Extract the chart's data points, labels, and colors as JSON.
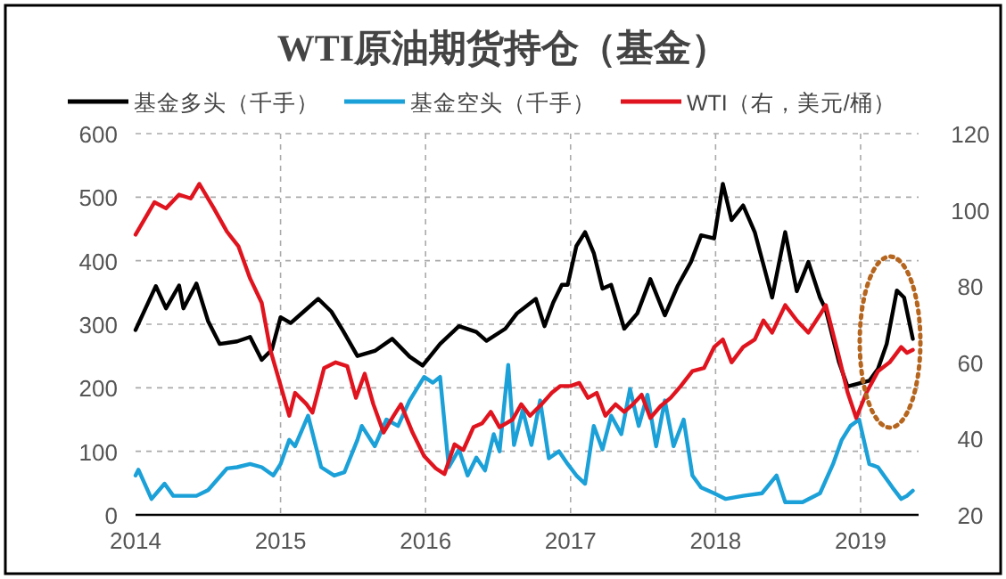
{
  "chart_data": {
    "type": "line",
    "title": "WTI原油期货持仓（基金）",
    "legend": "top",
    "grid": true,
    "line_style": "solid",
    "marker": "none",
    "xlim": [
      2014,
      2019.4
    ],
    "xticks": [
      2014,
      2015,
      2016,
      2017,
      2018,
      2019
    ],
    "ylim": [
      0,
      600
    ],
    "yticks": [
      0,
      100,
      200,
      300,
      400,
      500,
      600
    ],
    "y2lim": [
      20,
      120
    ],
    "y2ticks": [
      20,
      40,
      60,
      80,
      100,
      120
    ],
    "series": [
      {
        "name": "基金多头（千手）",
        "color": "#000000",
        "x": [
          2014.0,
          2014.14,
          2014.21,
          2014.3,
          2014.33,
          2014.42,
          2014.5,
          2014.58,
          2014.7,
          2014.79,
          2014.87,
          2014.94,
          2015.0,
          2015.07,
          2015.16,
          2015.26,
          2015.35,
          2015.43,
          2015.53,
          2015.65,
          2015.77,
          2015.89,
          2015.98,
          2016.1,
          2016.23,
          2016.35,
          2016.42,
          2016.55,
          2016.63,
          2016.76,
          2016.82,
          2016.88,
          2016.94,
          2016.98,
          2017.04,
          2017.1,
          2017.16,
          2017.22,
          2017.28,
          2017.37,
          2017.46,
          2017.55,
          2017.65,
          2017.74,
          2017.83,
          2017.9,
          2017.99,
          2018.05,
          2018.11,
          2018.19,
          2018.27,
          2018.39,
          2018.48,
          2018.56,
          2018.64,
          2018.72,
          2018.76,
          2018.85,
          2018.91,
          2019.06,
          2019.12,
          2019.18,
          2019.25,
          2019.3,
          2019.36
        ],
        "values": [
          291,
          360,
          325,
          361,
          325,
          364,
          305,
          269,
          273,
          280,
          244,
          260,
          311,
          302,
          320,
          340,
          320,
          290,
          250,
          258,
          277,
          249,
          235,
          269,
          297,
          288,
          274,
          293,
          317,
          340,
          297,
          334,
          362,
          362,
          423,
          445,
          412,
          356,
          362,
          293,
          317,
          371,
          314,
          361,
          398,
          440,
          435,
          521,
          464,
          487,
          445,
          342,
          445,
          352,
          398,
          342,
          323,
          241,
          202,
          211,
          230,
          269,
          353,
          342,
          277
        ]
      },
      {
        "name": "基金空头（千手）",
        "color": "#1ba1d8",
        "x": [
          2014.0,
          2014.02,
          2014.11,
          2014.2,
          2014.26,
          2014.42,
          2014.5,
          2014.63,
          2014.7,
          2014.79,
          2014.87,
          2014.95,
          2015.0,
          2015.06,
          2015.1,
          2015.19,
          2015.28,
          2015.37,
          2015.44,
          2015.53,
          2015.56,
          2015.65,
          2015.73,
          2015.81,
          2015.89,
          2015.99,
          2016.05,
          2016.1,
          2016.16,
          2016.23,
          2016.29,
          2016.35,
          2016.41,
          2016.47,
          2016.51,
          2016.57,
          2016.61,
          2016.67,
          2016.73,
          2016.79,
          2016.85,
          2016.92,
          2016.98,
          2017.04,
          2017.1,
          2017.16,
          2017.22,
          2017.28,
          2017.35,
          2017.41,
          2017.47,
          2017.53,
          2017.59,
          2017.65,
          2017.71,
          2017.78,
          2017.84,
          2017.9,
          2017.99,
          2018.07,
          2018.19,
          2018.32,
          2018.42,
          2018.48,
          2018.6,
          2018.72,
          2018.81,
          2018.87,
          2018.93,
          2018.99,
          2019.06,
          2019.12,
          2019.22,
          2019.28,
          2019.32,
          2019.36
        ],
        "values": [
          62,
          71,
          25,
          49,
          30,
          30,
          39,
          73,
          75,
          80,
          75,
          62,
          80,
          118,
          108,
          156,
          75,
          62,
          67,
          118,
          140,
          108,
          150,
          140,
          180,
          217,
          208,
          217,
          75,
          103,
          62,
          90,
          70,
          127,
          100,
          236,
          110,
          165,
          110,
          180,
          89,
          100,
          80,
          62,
          49,
          140,
          103,
          156,
          127,
          198,
          140,
          189,
          108,
          180,
          108,
          150,
          62,
          43,
          34,
          25,
          30,
          34,
          62,
          20,
          20,
          34,
          80,
          118,
          140,
          150,
          80,
          75,
          43,
          25,
          30,
          38
        ]
      },
      {
        "name": "WTI（右，美元/桶）",
        "color": "#e0141e",
        "axis": "y2",
        "x": [
          2014.0,
          2014.13,
          2014.21,
          2014.3,
          2014.38,
          2014.44,
          2014.54,
          2014.63,
          2014.71,
          2014.79,
          2014.87,
          2014.93,
          2014.99,
          2015.06,
          2015.1,
          2015.18,
          2015.22,
          2015.3,
          2015.38,
          2015.46,
          2015.52,
          2015.58,
          2015.64,
          2015.71,
          2015.78,
          2015.83,
          2015.91,
          2015.99,
          2016.07,
          2016.13,
          2016.2,
          2016.26,
          2016.33,
          2016.39,
          2016.45,
          2016.51,
          2016.6,
          2016.66,
          2016.72,
          2016.8,
          2016.87,
          2016.93,
          2017.0,
          2017.06,
          2017.12,
          2017.18,
          2017.24,
          2017.31,
          2017.37,
          2017.43,
          2017.49,
          2017.55,
          2017.62,
          2017.69,
          2017.76,
          2017.84,
          2017.92,
          2017.99,
          2018.05,
          2018.11,
          2018.19,
          2018.27,
          2018.33,
          2018.39,
          2018.48,
          2018.56,
          2018.64,
          2018.72,
          2018.76,
          2018.85,
          2018.91,
          2018.97,
          2019.04,
          2019.12,
          2019.2,
          2019.28,
          2019.32,
          2019.36
        ],
        "values": [
          93.5,
          102,
          100.4,
          104,
          103,
          106.8,
          100.4,
          94.3,
          90.4,
          82,
          75.6,
          63.2,
          55.3,
          46,
          52,
          49,
          46.8,
          58.5,
          60,
          59,
          50.7,
          57,
          49,
          41.6,
          46,
          49,
          41.6,
          35.4,
          32.2,
          30.7,
          38.5,
          37,
          43,
          44,
          47,
          43,
          45,
          49,
          46,
          49,
          52,
          53.8,
          53.8,
          54.6,
          50.7,
          52,
          46,
          49,
          47,
          49,
          51.5,
          45.4,
          48.5,
          50.7,
          53.8,
          57.7,
          58.5,
          64,
          66,
          60,
          64,
          66,
          71,
          67.8,
          75,
          71,
          67.8,
          72.5,
          75,
          61.6,
          52.2,
          45.4,
          52,
          57.7,
          60,
          64,
          62.5,
          63.3
        ]
      }
    ]
  }
}
